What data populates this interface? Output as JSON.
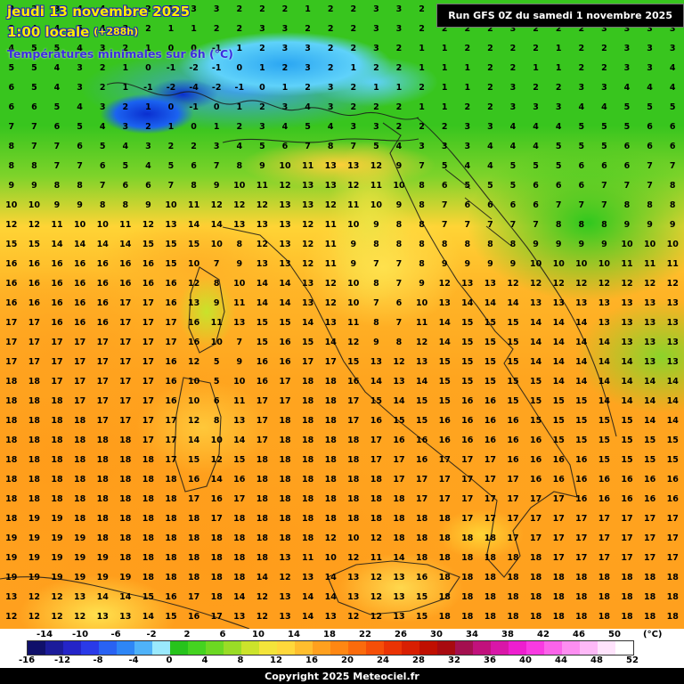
{
  "header": {
    "date_line": "jeudi 13 novembre 2025",
    "time_line": "1:00 locale",
    "offset": "(+288h)",
    "subtitle": "Températures minimales sur 6h (°C)",
    "run_info": "Run GFS 0Z du samedi 1 novembre 2025"
  },
  "footer": {
    "copyright": "Copyright 2025 Meteociel.fr"
  },
  "legend": {
    "unit": "(°C)",
    "top_labels": [
      "-14",
      "-10",
      "-6",
      "-2",
      "2",
      "6",
      "10",
      "14",
      "18",
      "22",
      "26",
      "30",
      "34",
      "38",
      "42",
      "46",
      "50"
    ],
    "bottom_labels": [
      "-16",
      "-12",
      "-8",
      "-4",
      "0",
      "4",
      "8",
      "12",
      "16",
      "20",
      "24",
      "28",
      "32",
      "36",
      "40",
      "44",
      "48",
      "52"
    ],
    "colors": [
      "#10106a",
      "#1b1b9a",
      "#2424c8",
      "#2a3ae8",
      "#2962f3",
      "#2e86f6",
      "#4fb2f9",
      "#9ae9fd",
      "#27c31c",
      "#44d320",
      "#6cd822",
      "#9adc26",
      "#cce32b",
      "#f4e43a",
      "#ffd83b",
      "#ffbe2e",
      "#ffa01e",
      "#ff8712",
      "#fb6b0c",
      "#f54f08",
      "#ea3304",
      "#d81f02",
      "#c00f01",
      "#a80a10",
      "#a4104f",
      "#c1117c",
      "#d916a8",
      "#ee1ecf",
      "#f93ae2",
      "#fb63ea",
      "#fd8ef1",
      "#feb9f7",
      "#ffe3fc",
      "#ffffff"
    ]
  },
  "chart_data": {
    "type": "heatmap",
    "title": "Températures minimales sur 6h (°C)",
    "model_run": "Run GFS 0Z du samedi 1 novembre 2025",
    "valid_time": "jeudi 13 novembre 2025 1:00 locale (+288h)",
    "scale_range_c": [
      -16,
      52
    ],
    "scale_step_c": 2,
    "grid_rows": [
      "2 3 3 4 4 3 2 2 3 3 2 2 2 1 2 2 3 3 2 2 1 2 3 3 2 2 3 3 3 2",
      "3 4 4 5 4 3 2 1 1 2 2 3 3 2 2 2 3 3 2 2 2 2 3 2 2 2 3 3 3 3",
      "4 5 5 4 3 2 1 0 0 -1 1 2 3 3 2 2 3 2 1 1 2 2 2 2 1 2 2 3 3 3",
      "5 5 4 3 2 1 0 -1 -2 -1 0 1 2 3 2 1 2 2 1 1 1 2 2 1 1 2 2 3 3 4",
      "6 5 4 3 2 1 -1 -2 -4 -2 -1 0 1 2 3 2 1 1 2 1 1 2 3 2 2 3 3 4 4 4",
      "6 6 5 4 3 2 1 0 -1 0 1 2 3 4 3 2 2 2 1 1 2 2 3 3 3 4 4 5 5 5",
      "7 7 6 5 4 3 2 1 0 1 2 3 4 5 4 3 3 2 2 2 3 3 4 4 4 5 5 5 6 6",
      "8 7 7 6 5 4 3 2 2 3 4 5 6 7 8 7 5 4 3 3 3 4 4 4 5 5 5 6 6 6",
      "8 8 7 7 6 5 4 5 6 7 8 9 10 11 13 13 12 9 7 5 4 4 5 5 5 6 6 6 7 7",
      "9 9 8 8 7 6 6 7 8 9 10 11 12 13 13 12 11 10 8 6 5 5 5 6 6 6 7 7 7 8",
      "10 10 9 9 8 8 9 10 11 12 12 12 13 13 12 11 10 9 8 7 6 6 6 6 7 7 7 8 8 8",
      "12 12 11 10 10 11 12 13 14 14 13 13 13 12 11 10 9 8 8 7 7 7 7 7 8 8 8 9 9 9",
      "15 15 14 14 14 14 15 15 15 10 8 12 13 12 11 9 8 8 8 8 8 8 8 9 9 9 9 10 10 10",
      "16 16 16 16 16 16 16 15 10 7 9 13 13 12 11 9 7 7 8 9 9 9 9 10 10 10 10 11 11 11",
      "16 16 16 16 16 16 16 16 12 8 10 14 14 13 12 10 8 7 9 12 13 13 12 12 12 12 12 12 12 12",
      "16 16 16 16 16 17 17 16 13 9 11 14 14 13 12 10 7 6 10 13 14 14 14 13 13 13 13 13 13 13",
      "17 17 16 16 16 17 17 17 16 11 13 15 15 14 13 11 8 7 11 14 15 15 15 14 14 14 13 13 13 13",
      "17 17 17 17 17 17 17 17 16 10 7 15 16 15 14 12 9 8 12 14 15 15 15 14 14 14 14 13 13 13",
      "17 17 17 17 17 17 17 16 12 5 9 16 16 17 17 15 13 12 13 15 15 15 15 14 14 14 14 14 13 13",
      "18 18 17 17 17 17 17 16 10 5 10 16 17 18 18 16 14 13 14 15 15 15 15 15 14 14 14 14 14 14",
      "18 18 18 17 17 17 17 16 10 6 11 17 17 18 18 17 15 14 15 15 16 16 15 15 15 15 14 14 14 14",
      "18 18 18 18 17 17 17 17 12 8 13 17 18 18 18 17 16 15 15 16 16 16 16 15 15 15 15 15 14 14",
      "18 18 18 18 18 18 17 17 14 10 14 17 18 18 18 18 17 16 16 16 16 16 16 16 15 15 15 15 15 15",
      "18 18 18 18 18 18 18 17 15 12 15 18 18 18 18 18 17 17 16 17 17 17 16 16 16 16 15 15 15 15",
      "18 18 18 18 18 18 18 18 16 14 16 18 18 18 18 18 18 17 17 17 17 17 17 16 16 16 16 16 16 16",
      "18 18 18 18 18 18 18 18 17 16 17 18 18 18 18 18 18 18 17 17 17 17 17 17 17 16 16 16 16 16",
      "18 19 19 18 18 18 18 18 18 17 18 18 18 18 18 18 18 18 18 18 17 17 17 17 17 17 17 17 17 17",
      "19 19 19 19 18 18 18 18 18 18 18 18 18 18 12 10 12 18 18 18 18 18 17 17 17 17 17 17 17 17",
      "19 19 19 19 19 18 18 18 18 18 18 18 13 11 10 12 11 14 18 18 18 18 18 18 17 17 17 17 17 17",
      "19 19 19 19 19 19 18 18 18 18 18 14 12 13 14 13 12 13 16 18 18 18 18 18 18 18 18 18 18 18",
      "13 12 12 13 14 14 15 16 17 18 14 12 13 14 14 13 12 13 15 18 18 18 18 18 18 18 18 18 18 18",
      "12 12 12 12 13 13 14 15 16 17 13 12 13 14 13 12 12 13 15 18 18 18 18 18 18 18 18 18 18 18"
    ]
  }
}
